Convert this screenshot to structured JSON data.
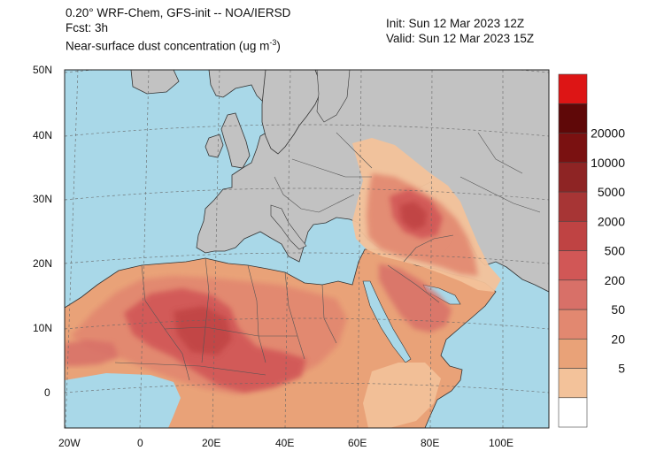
{
  "header": {
    "line1": "0.20° WRF-Chem, GFS-init -- NOA/IERSD",
    "line2": "Fcst: 3h",
    "line3_prefix": "Near-surface dust concentration (ug m",
    "line3_exp": "-3",
    "line3_suffix": ")",
    "init": "Init: Sun 12 Mar 2023  12Z",
    "valid": "Valid: Sun 12 Mar 2023  15Z"
  },
  "map": {
    "lat_labels": [
      "50N",
      "40N",
      "30N",
      "20N",
      "10N",
      "0"
    ],
    "lon_labels": [
      "20W",
      "0",
      "20E",
      "40E",
      "60E",
      "80E",
      "100E"
    ],
    "colors": {
      "ocean": "#a9d8e8",
      "land": "#c2c2c2",
      "border": "#555555"
    }
  },
  "colorbar": {
    "labels": [
      "20000",
      "10000",
      "5000",
      "2000",
      "500",
      "200",
      "50",
      "20",
      "5"
    ],
    "colors": [
      "#ffffff",
      "#f3c29a",
      "#e9a278",
      "#e28870",
      "#d87068",
      "#d15756",
      "#bf4343",
      "#a73535",
      "#8e2424",
      "#7a1111",
      "#5f0808",
      "#dd1515"
    ]
  }
}
